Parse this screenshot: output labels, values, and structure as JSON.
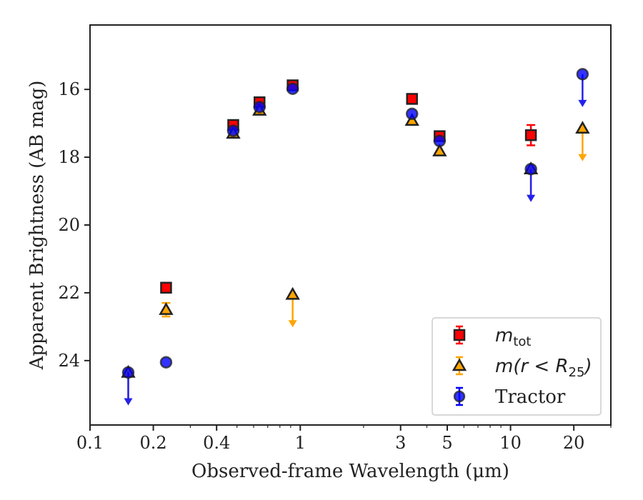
{
  "chart_data": {
    "type": "scatter",
    "xlabel": "Observed-frame Wavelength (μm)",
    "ylabel": "Apparent Brightness (AB mag)",
    "x_scale": "log",
    "xlim": [
      0.1,
      30
    ],
    "ylim": [
      25.9,
      14.1
    ],
    "y_inverted": true,
    "x_ticks": [
      {
        "value": 0.1,
        "label": "0.1"
      },
      {
        "value": 0.2,
        "label": "0.2"
      },
      {
        "value": 0.4,
        "label": "0.4"
      },
      {
        "value": 1,
        "label": "1"
      },
      {
        "value": 3,
        "label": "3"
      },
      {
        "value": 5,
        "label": "5"
      },
      {
        "value": 10,
        "label": "10"
      },
      {
        "value": 20,
        "label": "20"
      }
    ],
    "y_ticks": [
      {
        "value": 16,
        "label": "16"
      },
      {
        "value": 18,
        "label": "18"
      },
      {
        "value": 20,
        "label": "20"
      },
      {
        "value": 22,
        "label": "22"
      },
      {
        "value": 24,
        "label": "24"
      }
    ],
    "grid": false,
    "legend_position": "lower-right",
    "series": [
      {
        "name": "m_tot",
        "legend_main": "m",
        "legend_sub": "tot",
        "marker": "square",
        "color": "#ff0000",
        "edge_color": "#222222",
        "points": [
          {
            "x": 0.23,
            "y": 21.85
          },
          {
            "x": 0.48,
            "y": 17.05
          },
          {
            "x": 0.64,
            "y": 16.38
          },
          {
            "x": 0.92,
            "y": 15.88
          },
          {
            "x": 3.4,
            "y": 16.28
          },
          {
            "x": 4.6,
            "y": 17.38
          },
          {
            "x": 12.5,
            "y": 17.35,
            "err": 0.3
          }
        ]
      },
      {
        "name": "m(r < R_25)",
        "legend_main": "m(r < R",
        "legend_sub": "25",
        "legend_tail": ")",
        "marker": "triangle",
        "color": "#ffa500",
        "edge_color": "#222222",
        "points": [
          {
            "x": 0.152,
            "y": 24.35,
            "upper_limit": true
          },
          {
            "x": 0.23,
            "y": 22.5,
            "err": 0.2
          },
          {
            "x": 0.48,
            "y": 17.3
          },
          {
            "x": 0.64,
            "y": 16.62
          },
          {
            "x": 0.92,
            "y": 22.05,
            "upper_limit": true
          },
          {
            "x": 3.4,
            "y": 16.92
          },
          {
            "x": 4.6,
            "y": 17.82
          },
          {
            "x": 12.5,
            "y": 18.35,
            "upper_limit": true
          },
          {
            "x": 22.0,
            "y": 17.15,
            "upper_limit": true
          }
        ]
      },
      {
        "name": "Tractor",
        "legend_main": "Tractor",
        "marker": "circle",
        "color": "#0000ff",
        "edge_color": "#222222",
        "points": [
          {
            "x": 0.152,
            "y": 24.35,
            "upper_limit": true
          },
          {
            "x": 0.23,
            "y": 24.05
          },
          {
            "x": 0.48,
            "y": 17.22
          },
          {
            "x": 0.64,
            "y": 16.52
          },
          {
            "x": 0.92,
            "y": 15.98
          },
          {
            "x": 3.4,
            "y": 16.72
          },
          {
            "x": 4.6,
            "y": 17.52
          },
          {
            "x": 12.5,
            "y": 18.35,
            "upper_limit": true
          },
          {
            "x": 22.0,
            "y": 15.55,
            "upper_limit": true
          }
        ]
      }
    ]
  }
}
